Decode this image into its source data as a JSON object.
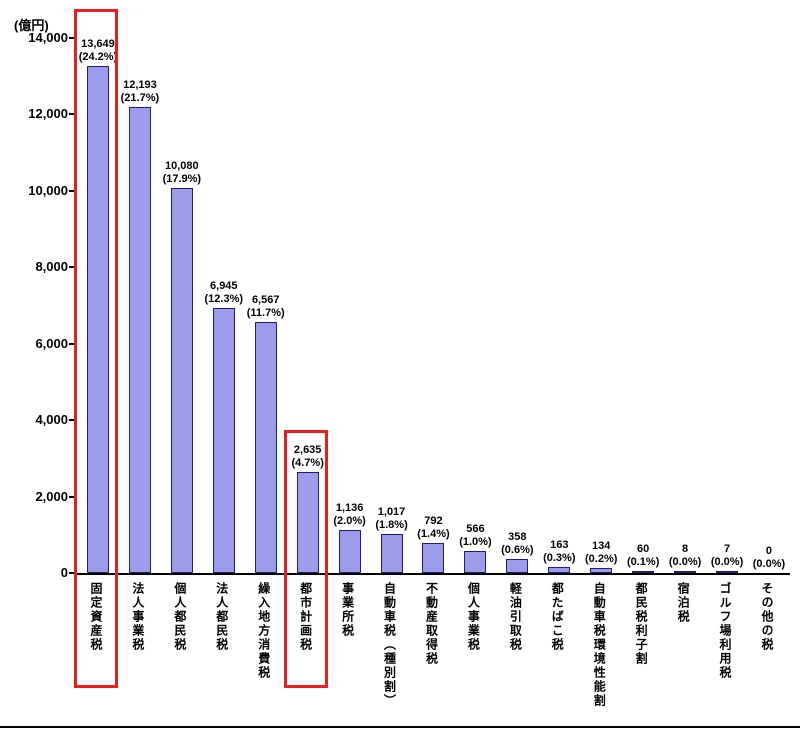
{
  "chart_data": {
    "type": "bar",
    "title": "",
    "xlabel": "",
    "ylabel": "(億円)",
    "ylim": [
      0,
      14000
    ],
    "ytick_values": [
      0,
      2000,
      4000,
      6000,
      8000,
      10000,
      12000,
      14000
    ],
    "ytick_labels": [
      "0",
      "2,000",
      "4,000",
      "6,000",
      "8,000",
      "10,000",
      "12,000",
      "14,000"
    ],
    "grid": false,
    "legend": "none",
    "categories": [
      "固定資産税",
      "法人事業税",
      "個人都民税",
      "法人都民税",
      "繰入地方消費税",
      "都市計画税",
      "事業所税",
      "自動車税（種別割）",
      "不動産取得税",
      "個人事業税",
      "軽油引取税",
      "都たばこ税",
      "自動車税環境性能割",
      "都民税利子割",
      "宿泊税",
      "ゴルフ場利用税",
      "その他の税"
    ],
    "values": [
      13649,
      12193,
      10080,
      6945,
      6567,
      2635,
      1136,
      1017,
      792,
      566,
      358,
      163,
      134,
      60,
      8,
      7,
      0
    ],
    "value_labels": [
      "13,649",
      "12,193",
      "10,080",
      "6,945",
      "6,567",
      "2,635",
      "1,136",
      "1,017",
      "792",
      "566",
      "358",
      "163",
      "134",
      "60",
      "8",
      "7",
      "0"
    ],
    "pct_labels": [
      "(24.2%)",
      "(21.7%)",
      "(17.9%)",
      "(12.3%)",
      "(11.7%)",
      "(4.7%)",
      "(2.0%)",
      "(1.8%)",
      "(1.4%)",
      "(1.0%)",
      "(0.6%)",
      "(0.3%)",
      "(0.2%)",
      "(0.1%)",
      "(0.0%)",
      "(0.0%)",
      "(0.0%)"
    ],
    "highlight_indices": [
      0,
      5
    ],
    "highlighted_categories": [
      "固定資産税",
      "都市計画税"
    ],
    "bar_color": "#9c9cea",
    "bar_border_color": "#1e1e6e",
    "highlight_box_color": "#ee1c1c",
    "axis_color": "#000000"
  }
}
